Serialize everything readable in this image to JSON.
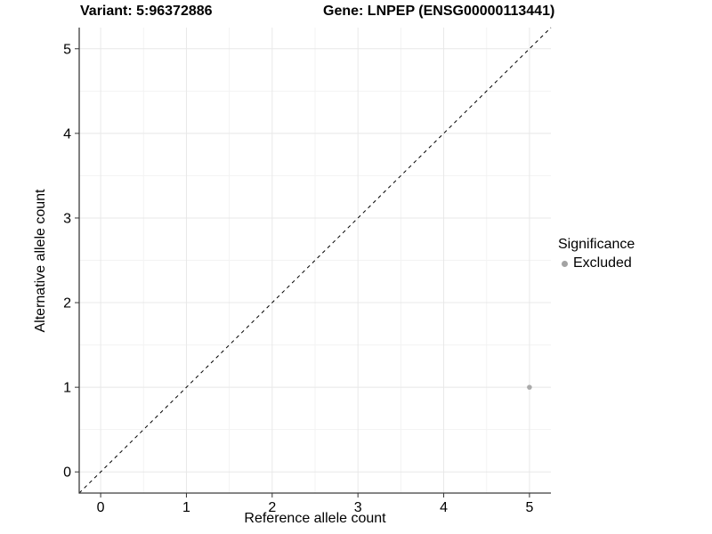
{
  "chart_data": {
    "type": "scatter",
    "title_left": "Variant: 5:96372886",
    "title_right": "Gene: LNPEP (ENSG00000113441)",
    "xlabel": "Reference allele count",
    "ylabel": "Alternative allele count",
    "xlim": [
      -0.25,
      5.25
    ],
    "ylim": [
      -0.25,
      5.25
    ],
    "xticks": [
      0,
      1,
      2,
      3,
      4,
      5
    ],
    "yticks": [
      0,
      1,
      2,
      3,
      4,
      5
    ],
    "xminor": [
      0.5,
      1.5,
      2.5,
      3.5,
      4.5
    ],
    "yminor": [
      0.5,
      1.5,
      2.5,
      3.5,
      4.5
    ],
    "grid": true,
    "reference_line": {
      "style": "dashed",
      "from": [
        -0.25,
        -0.25
      ],
      "to": [
        5.25,
        5.25
      ],
      "color": "#000000"
    },
    "series": [
      {
        "name": "Excluded",
        "color": "#aaaaaa",
        "points": [
          {
            "x": 5,
            "y": 1
          }
        ]
      }
    ],
    "legend": {
      "title": "Significance",
      "position": "right",
      "items": [
        {
          "label": "Excluded",
          "color": "#a3a3a3"
        }
      ]
    },
    "colors": {
      "grid_major": "#e8e8e8",
      "grid_minor": "#f3f3f3",
      "axis_line": "#3c3c3c",
      "tick_mark": "#333333",
      "tick_text": "#000000"
    }
  }
}
